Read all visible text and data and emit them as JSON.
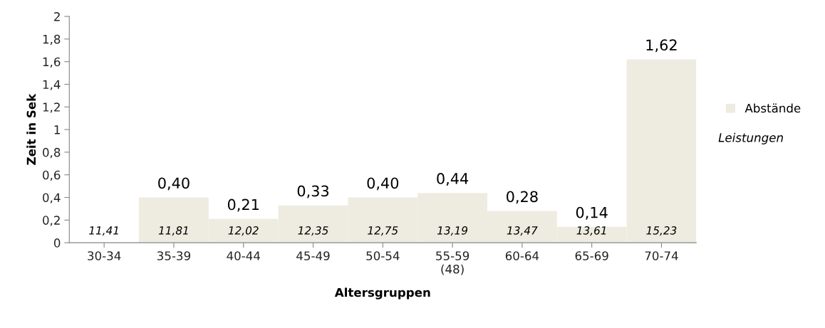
{
  "chart_data": {
    "type": "bar",
    "xlabel": "Altersgruppen",
    "ylabel": "Zeit in Sek",
    "categories": [
      "30-34",
      "35-39",
      "40-44",
      "45-49",
      "50-54",
      "55-59\n(48)",
      "60-64",
      "65-69",
      "70-74"
    ],
    "series": [
      {
        "name": "Abstände",
        "color": "#eeece1",
        "values": [
          0,
          0.4,
          0.21,
          0.33,
          0.4,
          0.44,
          0.28,
          0.14,
          1.62
        ],
        "value_labels": [
          null,
          "0,40",
          "0,21",
          "0,33",
          "0,40",
          "0,44",
          "0,28",
          "0,14",
          "1,62"
        ]
      }
    ],
    "ylim": [
      0,
      2
    ],
    "yticks": [
      0,
      {
        "value": 0.2,
        "label": "0,2"
      },
      {
        "value": 0.4,
        "label": "0,4"
      },
      {
        "value": 0.6,
        "label": "0,6"
      },
      {
        "value": 0.8,
        "label": "0,8"
      },
      1,
      {
        "value": 1.2,
        "label": "1,2"
      },
      {
        "value": 1.4,
        "label": "1,4"
      },
      {
        "value": 1.6,
        "label": "1,6"
      },
      {
        "value": 1.8,
        "label": "1,8"
      },
      2
    ],
    "grid": false,
    "legend": "right",
    "annotations": [
      "Leistungen",
      "11,41",
      "11,81",
      "12,02",
      "12,35",
      "12,75",
      "13,19",
      "13,47",
      "13,61",
      "15,23"
    ]
  }
}
